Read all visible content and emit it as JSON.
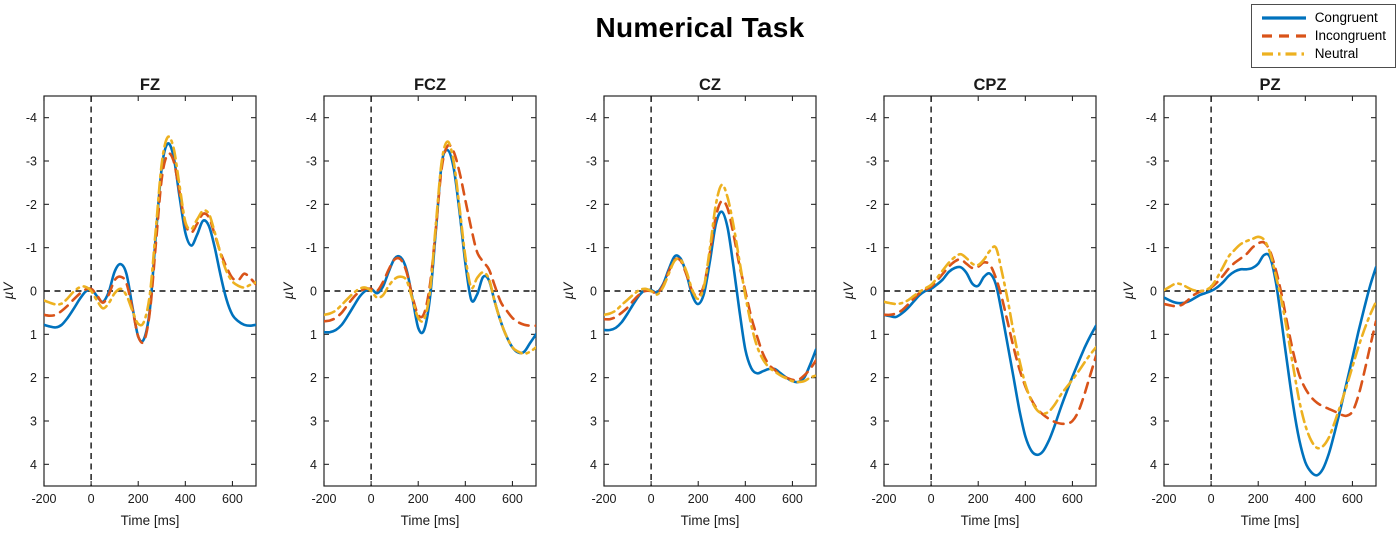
{
  "figure": {
    "title": "Numerical Task",
    "xlabel": "Time [ms]",
    "ylabel": "µV"
  },
  "legend": {
    "position": "top-right",
    "items": [
      {
        "label": "Congruent",
        "color": "#0072BD",
        "dash": "solid"
      },
      {
        "label": "Incongruent",
        "color": "#D95319",
        "dash": "dashed"
      },
      {
        "label": "Neutral",
        "color": "#EDB120",
        "dash": "dashdot"
      }
    ]
  },
  "chart_data": {
    "type": "line",
    "title": "Numerical Task",
    "xlabel": "Time [ms]",
    "ylabel": "µV",
    "xlim": [
      -200,
      700
    ],
    "ylim": [
      -4.5,
      4.5
    ],
    "y_axis_inverted_negative_up": true,
    "grid": false,
    "reference_lines": {
      "vertical_at_x": 0,
      "horizontal_at_y": 0,
      "style": "black dashed"
    },
    "xticks": [
      -200,
      0,
      200,
      400,
      600
    ],
    "yticks": [
      -4,
      -3,
      -2,
      -1,
      0,
      1,
      2,
      3,
      4
    ],
    "x": [
      -200,
      -175,
      -150,
      -125,
      -100,
      -75,
      -50,
      -25,
      0,
      25,
      50,
      75,
      100,
      125,
      150,
      175,
      200,
      225,
      250,
      275,
      300,
      325,
      350,
      375,
      400,
      425,
      450,
      475,
      500,
      525,
      550,
      575,
      600,
      625,
      650,
      675,
      700
    ],
    "subplots": [
      {
        "title": "FZ",
        "series": [
          {
            "name": "Congruent",
            "values": [
              0.78,
              0.82,
              0.84,
              0.78,
              0.62,
              0.42,
              0.2,
              0.02,
              -0.05,
              0.12,
              0.25,
              0.02,
              -0.45,
              -0.62,
              -0.4,
              0.35,
              1.05,
              1.1,
              0.4,
              -1.3,
              -2.85,
              -3.4,
              -3.1,
              -2.2,
              -1.35,
              -1.05,
              -1.3,
              -1.62,
              -1.5,
              -1.0,
              -0.35,
              0.2,
              0.55,
              0.7,
              0.78,
              0.8,
              0.78
            ]
          },
          {
            "name": "Incongruent",
            "values": [
              0.55,
              0.57,
              0.55,
              0.46,
              0.34,
              0.2,
              0.07,
              -0.03,
              -0.05,
              0.1,
              0.27,
              0.08,
              -0.25,
              -0.33,
              -0.18,
              0.4,
              1.05,
              1.15,
              0.45,
              -1.1,
              -2.6,
              -3.15,
              -3.0,
              -2.3,
              -1.55,
              -1.35,
              -1.55,
              -1.78,
              -1.7,
              -1.3,
              -0.88,
              -0.55,
              -0.3,
              -0.25,
              -0.4,
              -0.3,
              -0.15
            ]
          },
          {
            "name": "Neutral",
            "values": [
              0.22,
              0.27,
              0.31,
              0.29,
              0.17,
              0.02,
              -0.08,
              -0.1,
              0.0,
              0.22,
              0.4,
              0.28,
              0.05,
              -0.05,
              0.1,
              0.45,
              0.76,
              0.7,
              0.05,
              -1.45,
              -2.95,
              -3.55,
              -3.3,
              -2.45,
              -1.6,
              -1.43,
              -1.65,
              -1.85,
              -1.78,
              -1.35,
              -0.85,
              -0.45,
              -0.22,
              -0.12,
              -0.08,
              -0.14,
              -0.2
            ]
          }
        ]
      },
      {
        "title": "FCZ",
        "series": [
          {
            "name": "Congruent",
            "values": [
              0.95,
              0.95,
              0.9,
              0.78,
              0.58,
              0.36,
              0.14,
              0.0,
              -0.05,
              0.05,
              -0.1,
              -0.45,
              -0.75,
              -0.78,
              -0.5,
              0.15,
              0.85,
              0.9,
              0.15,
              -1.4,
              -2.95,
              -3.25,
              -2.85,
              -1.85,
              -0.65,
              0.2,
              0.08,
              -0.32,
              -0.25,
              0.25,
              0.7,
              1.05,
              1.3,
              1.42,
              1.4,
              1.2,
              1.0
            ]
          },
          {
            "name": "Incongruent",
            "values": [
              0.7,
              0.68,
              0.62,
              0.5,
              0.32,
              0.15,
              0.02,
              -0.05,
              -0.05,
              0.0,
              -0.2,
              -0.5,
              -0.73,
              -0.73,
              -0.45,
              0.12,
              0.55,
              0.52,
              -0.15,
              -1.45,
              -2.85,
              -3.35,
              -3.22,
              -2.75,
              -2.1,
              -1.45,
              -0.9,
              -0.68,
              -0.5,
              -0.12,
              0.25,
              0.45,
              0.62,
              0.72,
              0.78,
              0.8,
              0.8
            ]
          },
          {
            "name": "Neutral",
            "values": [
              0.55,
              0.52,
              0.45,
              0.32,
              0.18,
              0.05,
              -0.05,
              -0.08,
              0.0,
              0.15,
              0.1,
              -0.12,
              -0.28,
              -0.33,
              -0.25,
              0.18,
              0.62,
              0.65,
              0.0,
              -1.55,
              -3.0,
              -3.45,
              -3.0,
              -1.95,
              -0.8,
              -0.08,
              -0.3,
              -0.43,
              -0.28,
              0.25,
              0.7,
              1.05,
              1.3,
              1.4,
              1.45,
              1.4,
              1.3
            ]
          }
        ]
      },
      {
        "title": "CZ",
        "series": [
          {
            "name": "Congruent",
            "values": [
              0.9,
              0.9,
              0.85,
              0.72,
              0.52,
              0.3,
              0.1,
              -0.02,
              -0.02,
              0.03,
              -0.15,
              -0.5,
              -0.8,
              -0.75,
              -0.4,
              0.1,
              0.3,
              0.05,
              -0.7,
              -1.55,
              -1.83,
              -1.45,
              -0.55,
              0.45,
              1.35,
              1.78,
              1.9,
              1.85,
              1.8,
              1.8,
              1.9,
              2.0,
              2.08,
              2.1,
              2.0,
              1.7,
              1.35
            ]
          },
          {
            "name": "Incongruent",
            "values": [
              0.65,
              0.65,
              0.6,
              0.5,
              0.38,
              0.22,
              0.08,
              0.0,
              0.0,
              0.05,
              -0.12,
              -0.45,
              -0.72,
              -0.7,
              -0.38,
              0.0,
              0.12,
              -0.15,
              -0.9,
              -1.72,
              -2.08,
              -1.9,
              -1.3,
              -0.6,
              0.0,
              0.6,
              1.05,
              1.45,
              1.7,
              1.82,
              1.95,
              2.0,
              2.05,
              2.05,
              1.95,
              1.8,
              1.6
            ]
          },
          {
            "name": "Neutral",
            "values": [
              0.55,
              0.52,
              0.45,
              0.32,
              0.2,
              0.08,
              -0.02,
              -0.05,
              0.0,
              0.08,
              -0.08,
              -0.4,
              -0.7,
              -0.72,
              -0.45,
              -0.02,
              0.18,
              -0.12,
              -1.0,
              -2.0,
              -2.45,
              -2.15,
              -1.5,
              -0.7,
              0.1,
              0.78,
              1.28,
              1.58,
              1.76,
              1.86,
              1.95,
              2.02,
              2.08,
              2.1,
              2.08,
              2.0,
              1.95
            ]
          }
        ]
      },
      {
        "title": "CPZ",
        "series": [
          {
            "name": "Congruent",
            "values": [
              0.55,
              0.58,
              0.6,
              0.52,
              0.4,
              0.25,
              0.1,
              0.0,
              -0.05,
              -0.15,
              -0.27,
              -0.44,
              -0.53,
              -0.55,
              -0.42,
              -0.17,
              -0.12,
              -0.33,
              -0.4,
              -0.15,
              0.5,
              1.25,
              2.0,
              2.75,
              3.35,
              3.68,
              3.78,
              3.7,
              3.45,
              3.1,
              2.7,
              2.33,
              1.98,
              1.65,
              1.33,
              1.05,
              0.8
            ]
          },
          {
            "name": "Incongruent",
            "values": [
              0.55,
              0.55,
              0.52,
              0.45,
              0.32,
              0.18,
              0.05,
              -0.03,
              -0.1,
              -0.24,
              -0.4,
              -0.56,
              -0.68,
              -0.73,
              -0.63,
              -0.53,
              -0.56,
              -0.66,
              -0.6,
              -0.3,
              0.15,
              0.72,
              1.3,
              1.8,
              2.2,
              2.5,
              2.72,
              2.85,
              2.95,
              3.02,
              3.06,
              3.06,
              3.0,
              2.78,
              2.4,
              1.95,
              1.5
            ]
          },
          {
            "name": "Neutral",
            "values": [
              0.25,
              0.28,
              0.3,
              0.28,
              0.22,
              0.12,
              0.02,
              -0.06,
              -0.14,
              -0.3,
              -0.48,
              -0.65,
              -0.78,
              -0.85,
              -0.76,
              -0.63,
              -0.6,
              -0.73,
              -0.93,
              -1.0,
              -0.45,
              0.2,
              0.95,
              1.6,
              2.15,
              2.52,
              2.75,
              2.83,
              2.78,
              2.62,
              2.4,
              2.22,
              2.05,
              1.86,
              1.66,
              1.47,
              1.3
            ]
          }
        ]
      },
      {
        "title": "PZ",
        "series": [
          {
            "name": "Congruent",
            "values": [
              0.15,
              0.22,
              0.27,
              0.28,
              0.25,
              0.18,
              0.1,
              0.05,
              0.0,
              -0.08,
              -0.2,
              -0.35,
              -0.45,
              -0.5,
              -0.5,
              -0.53,
              -0.63,
              -0.83,
              -0.78,
              -0.2,
              0.75,
              1.75,
              2.7,
              3.45,
              3.95,
              4.18,
              4.25,
              4.1,
              3.75,
              3.25,
              2.7,
              2.12,
              1.55,
              0.95,
              0.4,
              -0.12,
              -0.55
            ]
          },
          {
            "name": "Incongruent",
            "values": [
              0.3,
              0.33,
              0.35,
              0.32,
              0.22,
              0.1,
              0.02,
              -0.02,
              -0.08,
              -0.2,
              -0.35,
              -0.52,
              -0.65,
              -0.75,
              -0.85,
              -1.0,
              -1.1,
              -1.12,
              -0.92,
              -0.48,
              0.1,
              0.8,
              1.45,
              1.95,
              2.25,
              2.45,
              2.58,
              2.66,
              2.72,
              2.78,
              2.85,
              2.88,
              2.78,
              2.42,
              1.88,
              1.28,
              0.7
            ]
          },
          {
            "name": "Neutral",
            "values": [
              -0.02,
              -0.1,
              -0.17,
              -0.15,
              -0.08,
              -0.02,
              0.0,
              -0.02,
              -0.1,
              -0.3,
              -0.55,
              -0.8,
              -0.95,
              -1.08,
              -1.15,
              -1.2,
              -1.25,
              -1.18,
              -0.88,
              -0.35,
              0.25,
              1.0,
              1.8,
              2.55,
              3.1,
              3.45,
              3.62,
              3.58,
              3.38,
              3.02,
              2.62,
              2.2,
              1.75,
              1.3,
              0.9,
              0.55,
              0.25
            ]
          }
        ]
      }
    ]
  }
}
